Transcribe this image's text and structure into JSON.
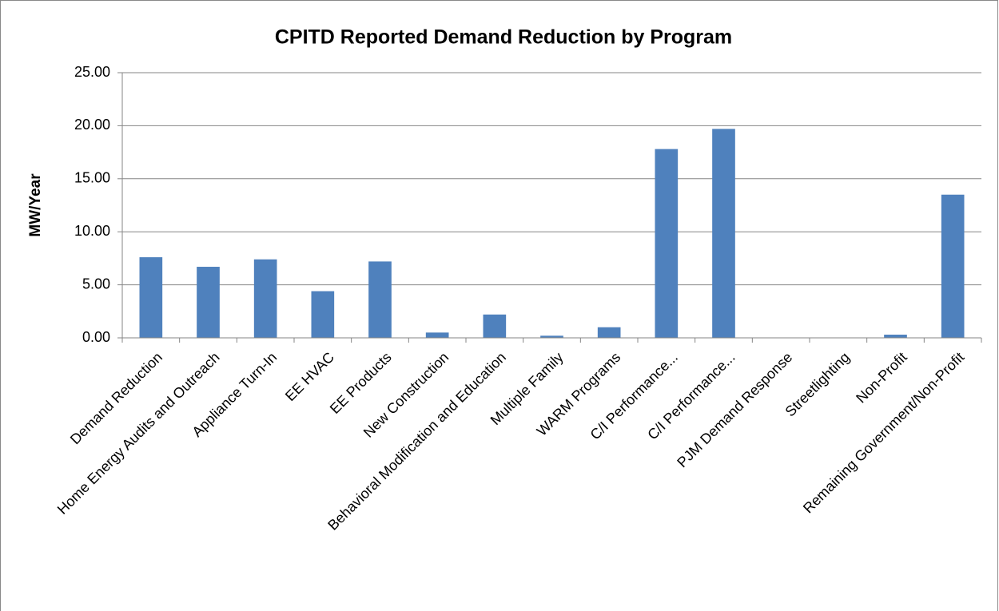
{
  "chart_data": {
    "type": "bar",
    "title": "CPITD Reported Demand Reduction by Program",
    "y_label": "MW/Year",
    "categories": [
      "Demand Reduction",
      "Home Energy Audits and Outreach",
      "Appliance Turn-In",
      "EE HVAC",
      "EE Products",
      "New Construction",
      "Behavioral Modification and Education",
      "Multiple Family",
      "WARM Programs",
      "C/I Performance...",
      "C/I Performance...",
      "PJM Demand Response",
      "Streetlighting",
      "Non-Profit",
      "Remaining Government/Non-Profit"
    ],
    "values": [
      7.6,
      6.7,
      7.4,
      4.4,
      7.2,
      0.5,
      2.2,
      0.2,
      1.0,
      17.8,
      19.7,
      0,
      0,
      0.3,
      13.5
    ],
    "color": "#4f81bd",
    "ylim": [
      0,
      25
    ],
    "yticks": [
      {
        "value": 0,
        "label": "0.00"
      },
      {
        "value": 5,
        "label": "5.00"
      },
      {
        "value": 10,
        "label": "10.00"
      },
      {
        "value": 15,
        "label": "15.00"
      },
      {
        "value": 20,
        "label": "20.00"
      },
      {
        "value": 25,
        "label": "25.00"
      }
    ],
    "grid": true
  }
}
